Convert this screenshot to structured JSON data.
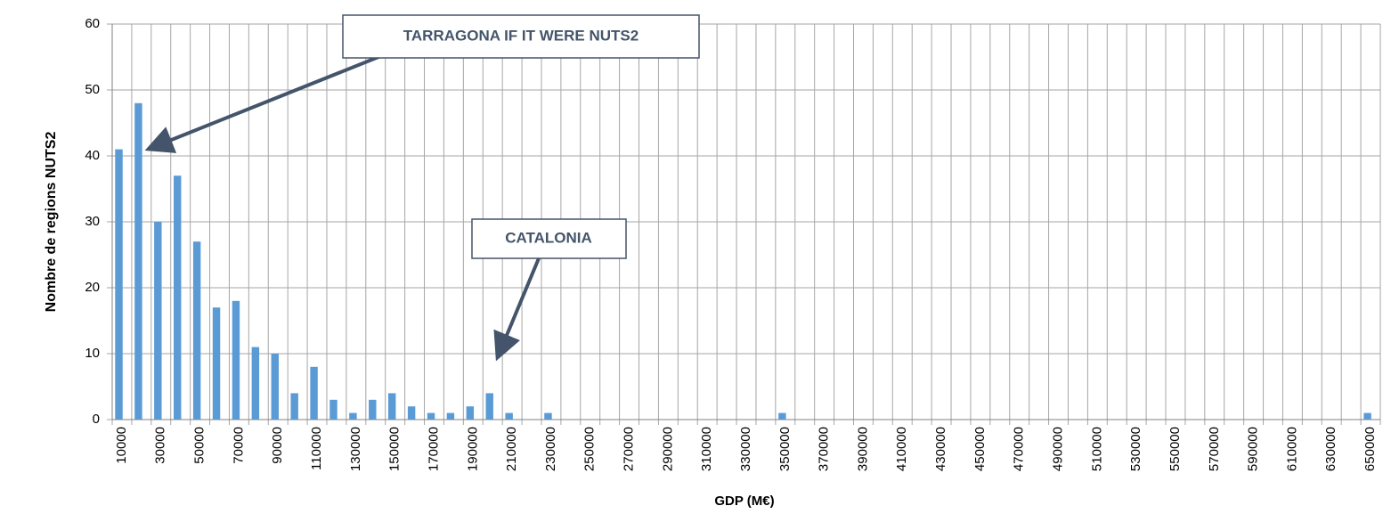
{
  "chart_data": {
    "type": "bar",
    "xlabel": "GDP (M€)",
    "ylabel": "Nombre de regions NUTS2",
    "categories": [
      "10000",
      null,
      "30000",
      null,
      "50000",
      null,
      "70000",
      null,
      "90000",
      null,
      "110000",
      null,
      "130000",
      null,
      "150000",
      null,
      "170000",
      null,
      "190000",
      null,
      "210000",
      null,
      "230000",
      null,
      "250000",
      null,
      "270000",
      null,
      "290000",
      null,
      "310000",
      null,
      "330000",
      null,
      "350000",
      null,
      "370000",
      null,
      "390000",
      null,
      "410000",
      null,
      "430000",
      null,
      "450000",
      null,
      "470000",
      null,
      "490000",
      null,
      "510000",
      null,
      "530000",
      null,
      "550000",
      null,
      "570000",
      null,
      "590000",
      null,
      "610000",
      null,
      "630000",
      null,
      "650000"
    ],
    "values": [
      41,
      48,
      30,
      37,
      27,
      17,
      18,
      11,
      10,
      4,
      8,
      3,
      1,
      3,
      4,
      2,
      1,
      1,
      2,
      4,
      1,
      0,
      1,
      0,
      0,
      0,
      0,
      0,
      0,
      0,
      0,
      0,
      0,
      0,
      1,
      0,
      0,
      0,
      0,
      0,
      0,
      0,
      0,
      0,
      0,
      0,
      0,
      0,
      0,
      0,
      0,
      0,
      0,
      0,
      0,
      0,
      0,
      0,
      0,
      0,
      0,
      0,
      0,
      0,
      1
    ],
    "color": "#5b9bd5",
    "ylim": [
      0,
      60
    ],
    "yticks": [
      0,
      10,
      20,
      30,
      40,
      50,
      60
    ],
    "grid": true,
    "annotations": [
      {
        "text": "TARRAGONA IF IT WERE NUTS2"
      },
      {
        "text": "CATALONIA"
      }
    ]
  }
}
